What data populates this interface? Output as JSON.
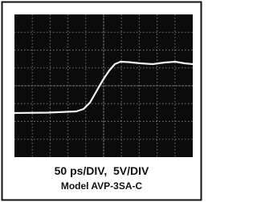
{
  "caption": {
    "line1": "50 ps/DIV,  5V/DIV",
    "line2": "Model AVP-3SA-C"
  }
}
